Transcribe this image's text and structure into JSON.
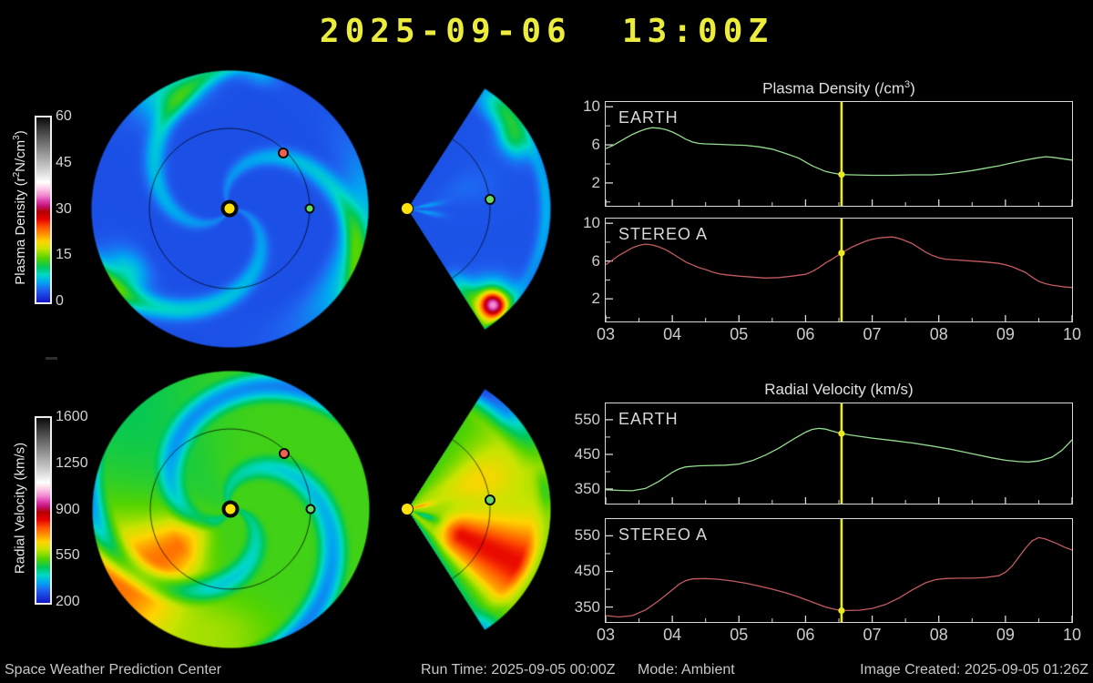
{
  "title": "2025-09-06  13:00Z",
  "footer": {
    "left": "Space Weather Prediction Center",
    "run_time": "Run Time: 2025-09-05 00:00Z",
    "mode": "Mode: Ambient",
    "created": "Image Created: 2025-09-05 01:26Z"
  },
  "colorbars": {
    "density": {
      "label_parts": {
        "p1": "Plasma Density (r",
        "sup1": "2",
        "p2": "N/cm",
        "sup2": "3",
        "p3": ")"
      },
      "ticks": [
        "60",
        "45",
        "30",
        "15",
        "0"
      ]
    },
    "velocity": {
      "label": "Radial Velocity (km/s)",
      "ticks": [
        "1600",
        "1250",
        "900",
        "550",
        "200"
      ]
    },
    "palette": [
      [
        0.0,
        "#1414c8"
      ],
      [
        0.07,
        "#1e64f0"
      ],
      [
        0.11,
        "#00a8f0"
      ],
      [
        0.15,
        "#00d8c8"
      ],
      [
        0.19,
        "#00c85a"
      ],
      [
        0.24,
        "#55d400"
      ],
      [
        0.29,
        "#c8e400"
      ],
      [
        0.33,
        "#ffd400"
      ],
      [
        0.37,
        "#ff9100"
      ],
      [
        0.41,
        "#ff4e00"
      ],
      [
        0.45,
        "#e60000"
      ],
      [
        0.49,
        "#b40000"
      ],
      [
        0.52,
        "#c01070"
      ],
      [
        0.55,
        "#e040b0"
      ],
      [
        0.58,
        "#f08cd0"
      ],
      [
        0.62,
        "#ffd2ea"
      ],
      [
        0.65,
        "#ffffff"
      ],
      [
        0.72,
        "#cfcfcf"
      ],
      [
        0.8,
        "#9a9a9a"
      ],
      [
        0.9,
        "#555555"
      ],
      [
        1.0,
        "#0a0a0a"
      ]
    ]
  },
  "maps": {
    "sun_color": "#ffe20a",
    "earth_color": "#66d966",
    "stereo_a_color": "#ef6152",
    "markers": [
      "sun",
      "earth",
      "stereo-a"
    ]
  },
  "chart_data": [
    {
      "type": "line",
      "title_parts": {
        "pre": "Plasma Density (/cm",
        "sup": "3",
        "post": ")"
      },
      "xlim": [
        3,
        10
      ],
      "ylim": [
        -0.4,
        10.5
      ],
      "xticks": [
        3,
        4,
        5,
        6,
        7,
        8,
        9,
        10
      ],
      "xtick_labels": [
        "03",
        "04",
        "05",
        "06",
        "07",
        "08",
        "09",
        "10"
      ],
      "ytick_major": [
        2,
        6,
        10
      ],
      "ytick_minor": [
        0,
        4,
        8
      ],
      "now_x": 6.54,
      "now_color": "#e9e91e",
      "panels": [
        {
          "label": "EARTH",
          "color": "#93dc8f",
          "now_value": 2.88,
          "points": [
            [
              3,
              5.6
            ],
            [
              3.1,
              5.9
            ],
            [
              3.2,
              6.3
            ],
            [
              3.3,
              6.7
            ],
            [
              3.4,
              7.1
            ],
            [
              3.5,
              7.4
            ],
            [
              3.6,
              7.65
            ],
            [
              3.7,
              7.8
            ],
            [
              3.8,
              7.75
            ],
            [
              3.9,
              7.6
            ],
            [
              4,
              7.35
            ],
            [
              4.1,
              7
            ],
            [
              4.2,
              6.6
            ],
            [
              4.3,
              6.3
            ],
            [
              4.4,
              6.15
            ],
            [
              4.5,
              6.1
            ],
            [
              4.7,
              6.05
            ],
            [
              4.9,
              6
            ],
            [
              5.1,
              5.95
            ],
            [
              5.3,
              5.8
            ],
            [
              5.5,
              5.55
            ],
            [
              5.7,
              5.1
            ],
            [
              5.9,
              4.6
            ],
            [
              6,
              4.2
            ],
            [
              6.1,
              3.8
            ],
            [
              6.2,
              3.5
            ],
            [
              6.3,
              3.2
            ],
            [
              6.4,
              3.05
            ],
            [
              6.54,
              2.88
            ],
            [
              6.7,
              2.85
            ],
            [
              7,
              2.8
            ],
            [
              7.3,
              2.8
            ],
            [
              7.6,
              2.85
            ],
            [
              7.9,
              2.85
            ],
            [
              8.1,
              2.95
            ],
            [
              8.3,
              3.1
            ],
            [
              8.5,
              3.3
            ],
            [
              8.7,
              3.55
            ],
            [
              8.9,
              3.8
            ],
            [
              9.1,
              4.1
            ],
            [
              9.3,
              4.4
            ],
            [
              9.45,
              4.6
            ],
            [
              9.6,
              4.75
            ],
            [
              9.7,
              4.7
            ],
            [
              9.8,
              4.6
            ],
            [
              9.9,
              4.5
            ],
            [
              10,
              4.4
            ]
          ]
        },
        {
          "label": "STEREO A",
          "color": "#c25b60",
          "now_value": 6.85,
          "points": [
            [
              3,
              5.6
            ],
            [
              3.1,
              6.1
            ],
            [
              3.2,
              6.6
            ],
            [
              3.3,
              7
            ],
            [
              3.4,
              7.4
            ],
            [
              3.5,
              7.65
            ],
            [
              3.6,
              7.8
            ],
            [
              3.7,
              7.7
            ],
            [
              3.8,
              7.5
            ],
            [
              3.9,
              7.2
            ],
            [
              4,
              6.8
            ],
            [
              4.1,
              6.35
            ],
            [
              4.2,
              5.9
            ],
            [
              4.3,
              5.6
            ],
            [
              4.4,
              5.3
            ],
            [
              4.5,
              5.1
            ],
            [
              4.6,
              4.85
            ],
            [
              4.7,
              4.65
            ],
            [
              4.8,
              4.55
            ],
            [
              5,
              4.4
            ],
            [
              5.2,
              4.3
            ],
            [
              5.4,
              4.2
            ],
            [
              5.6,
              4.25
            ],
            [
              5.8,
              4.4
            ],
            [
              5.9,
              4.5
            ],
            [
              6,
              4.6
            ],
            [
              6.1,
              4.9
            ],
            [
              6.2,
              5.3
            ],
            [
              6.3,
              5.8
            ],
            [
              6.4,
              6.2
            ],
            [
              6.54,
              6.85
            ],
            [
              6.7,
              7.5
            ],
            [
              6.8,
              7.8
            ],
            [
              6.9,
              8.1
            ],
            [
              7,
              8.3
            ],
            [
              7.1,
              8.45
            ],
            [
              7.2,
              8.5
            ],
            [
              7.3,
              8.55
            ],
            [
              7.4,
              8.4
            ],
            [
              7.5,
              8.15
            ],
            [
              7.6,
              7.85
            ],
            [
              7.7,
              7.4
            ],
            [
              7.8,
              6.95
            ],
            [
              7.9,
              6.6
            ],
            [
              8,
              6.35
            ],
            [
              8.1,
              6.2
            ],
            [
              8.3,
              6.1
            ],
            [
              8.5,
              6
            ],
            [
              8.7,
              5.9
            ],
            [
              8.9,
              5.75
            ],
            [
              9,
              5.6
            ],
            [
              9.1,
              5.4
            ],
            [
              9.2,
              5.1
            ],
            [
              9.3,
              4.8
            ],
            [
              9.4,
              4.3
            ],
            [
              9.5,
              3.85
            ],
            [
              9.6,
              3.6
            ],
            [
              9.7,
              3.45
            ],
            [
              9.8,
              3.35
            ],
            [
              9.9,
              3.25
            ],
            [
              10,
              3.2
            ]
          ]
        }
      ]
    },
    {
      "type": "line",
      "title_parts": {
        "pre": "Radial Velocity (km/s)",
        "sup": "",
        "post": ""
      },
      "xlim": [
        3,
        10
      ],
      "ylim": [
        308,
        597
      ],
      "xticks": [
        3,
        4,
        5,
        6,
        7,
        8,
        9,
        10
      ],
      "xtick_labels": [
        "03",
        "04",
        "05",
        "06",
        "07",
        "08",
        "09",
        "10"
      ],
      "ytick_major": [
        350,
        450,
        550
      ],
      "ytick_minor": [
        400,
        500
      ],
      "now_x": 6.54,
      "now_color": "#e9e91e",
      "panels": [
        {
          "label": "EARTH",
          "color": "#93dc8f",
          "now_value": 510,
          "points": [
            [
              3,
              348
            ],
            [
              3.2,
              346
            ],
            [
              3.4,
              345
            ],
            [
              3.6,
              352
            ],
            [
              3.8,
              372
            ],
            [
              4,
              398
            ],
            [
              4.1,
              408
            ],
            [
              4.2,
              414
            ],
            [
              4.4,
              417
            ],
            [
              4.6,
              418
            ],
            [
              4.8,
              419
            ],
            [
              5,
              422
            ],
            [
              5.2,
              432
            ],
            [
              5.4,
              448
            ],
            [
              5.6,
              468
            ],
            [
              5.8,
              492
            ],
            [
              6,
              514
            ],
            [
              6.1,
              522
            ],
            [
              6.2,
              525
            ],
            [
              6.3,
              523
            ],
            [
              6.4,
              517
            ],
            [
              6.54,
              510
            ],
            [
              6.7,
              505
            ],
            [
              7,
              497
            ],
            [
              7.3,
              490
            ],
            [
              7.6,
              483
            ],
            [
              7.9,
              474
            ],
            [
              8.2,
              464
            ],
            [
              8.5,
              452
            ],
            [
              8.8,
              440
            ],
            [
              9,
              433
            ],
            [
              9.2,
              429
            ],
            [
              9.35,
              428
            ],
            [
              9.5,
              431
            ],
            [
              9.7,
              442
            ],
            [
              9.85,
              462
            ],
            [
              10,
              492
            ]
          ]
        },
        {
          "label": "STEREO A",
          "color": "#c25b60",
          "now_value": 340,
          "points": [
            [
              3,
              326
            ],
            [
              3.2,
              322
            ],
            [
              3.4,
              326
            ],
            [
              3.6,
              342
            ],
            [
              3.8,
              368
            ],
            [
              4,
              398
            ],
            [
              4.1,
              414
            ],
            [
              4.2,
              424
            ],
            [
              4.3,
              429
            ],
            [
              4.5,
              430
            ],
            [
              4.7,
              428
            ],
            [
              4.9,
              423
            ],
            [
              5.1,
              417
            ],
            [
              5.3,
              409
            ],
            [
              5.5,
              400
            ],
            [
              5.7,
              390
            ],
            [
              5.9,
              378
            ],
            [
              6.1,
              364
            ],
            [
              6.3,
              350
            ],
            [
              6.45,
              343
            ],
            [
              6.54,
              340
            ],
            [
              6.8,
              341
            ],
            [
              7,
              346
            ],
            [
              7.2,
              357
            ],
            [
              7.4,
              375
            ],
            [
              7.6,
              398
            ],
            [
              7.8,
              418
            ],
            [
              7.95,
              427
            ],
            [
              8.1,
              430
            ],
            [
              8.3,
              431
            ],
            [
              8.5,
              431
            ],
            [
              8.7,
              433
            ],
            [
              8.9,
              438
            ],
            [
              9,
              448
            ],
            [
              9.1,
              465
            ],
            [
              9.2,
              490
            ],
            [
              9.3,
              515
            ],
            [
              9.4,
              536
            ],
            [
              9.5,
              545
            ],
            [
              9.6,
              541
            ],
            [
              9.75,
              530
            ],
            [
              9.9,
              517
            ],
            [
              10,
              510
            ]
          ]
        }
      ]
    }
  ]
}
